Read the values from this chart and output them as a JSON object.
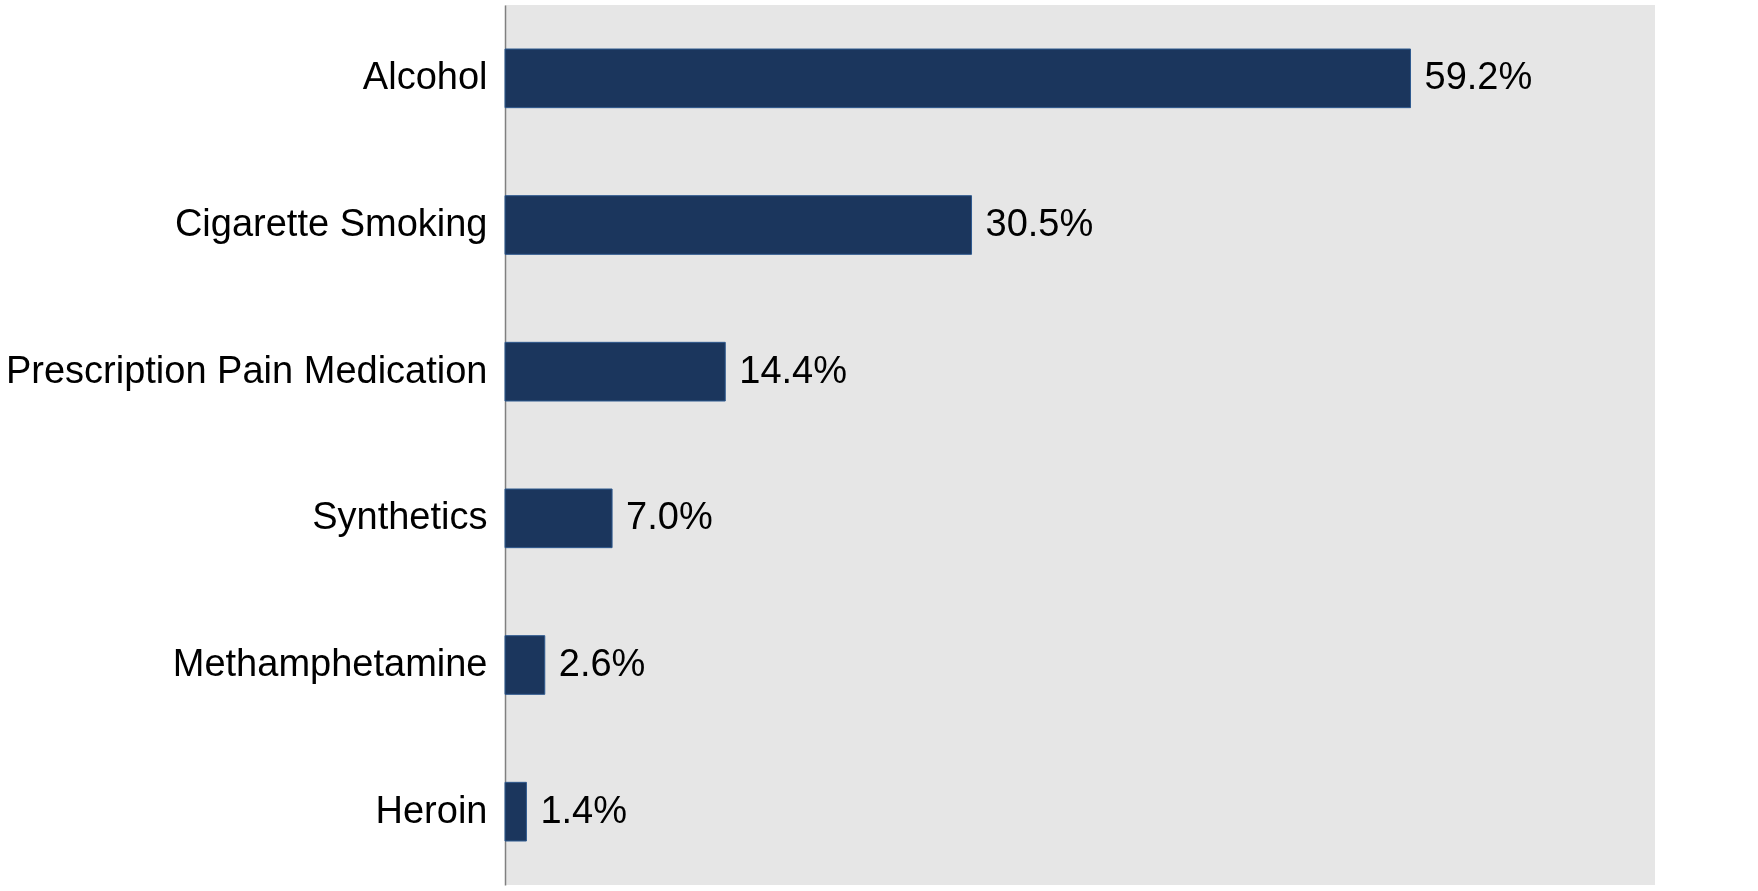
{
  "chart_data": {
    "type": "bar",
    "orientation": "horizontal",
    "categories": [
      "Alcohol",
      "Cigarette Smoking",
      "Prescription Pain Medication",
      "Synthetics",
      "Methamphetamine",
      "Heroin"
    ],
    "values": [
      59.2,
      30.5,
      14.4,
      7.0,
      2.6,
      1.4
    ],
    "value_labels": [
      "59.2%",
      "30.5%",
      "14.4%",
      "7.0%",
      "2.6%",
      "1.4%"
    ],
    "color": "#1b365d",
    "grid": false
  }
}
